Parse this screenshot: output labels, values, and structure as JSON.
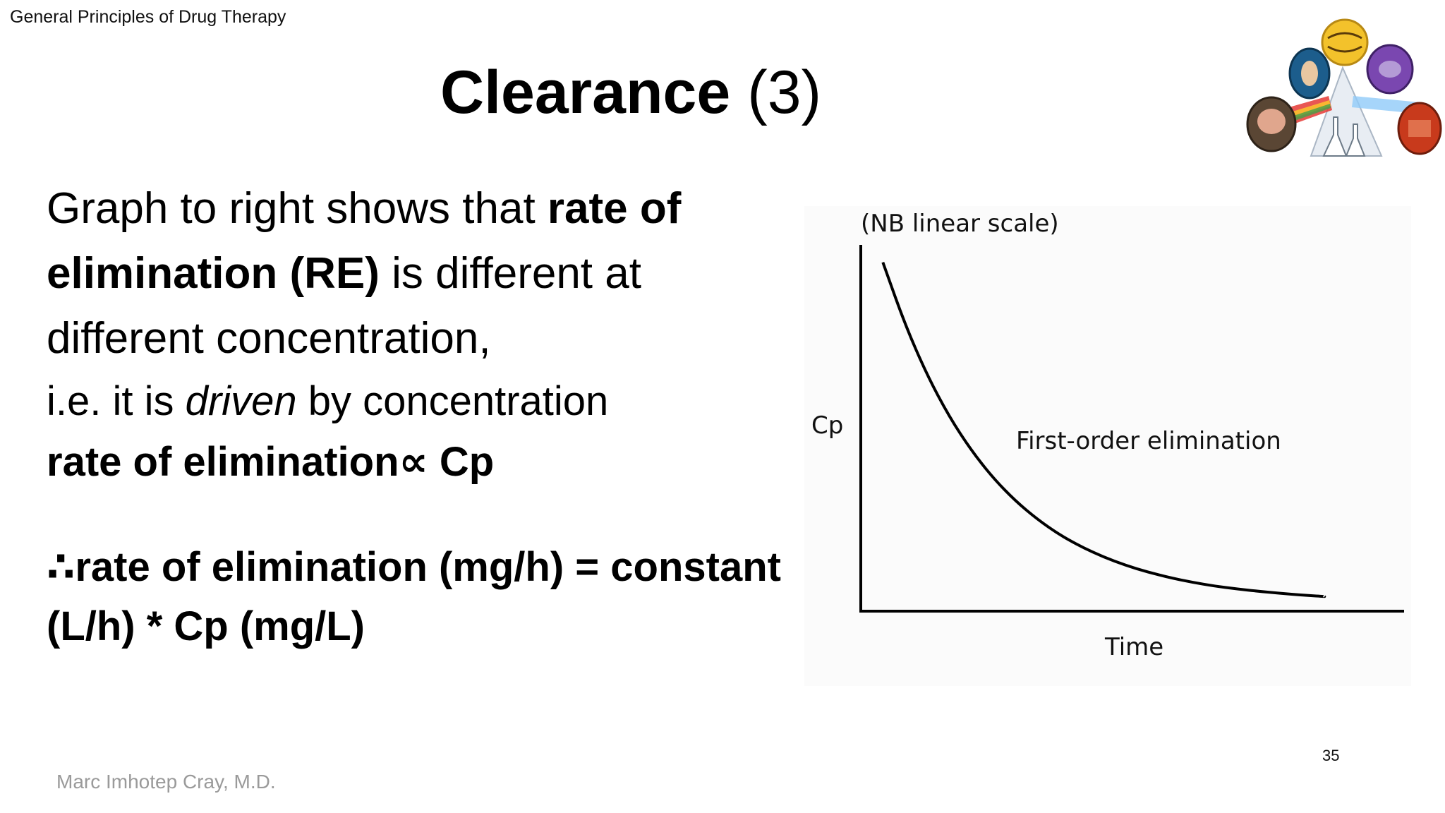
{
  "slide": {
    "header_label": "General Principles of Drug Therapy",
    "title_main": "Clearance",
    "title_number": "(3)",
    "page_number": "35",
    "author": "Marc Imhotep Cray, M.D."
  },
  "body": {
    "line1_normal": "Graph to right shows that ",
    "line1_bold": "rate of",
    "line2_bold": "elimination (RE)",
    "line2_normal": " is different at",
    "line3": "different concentration,",
    "line4_pre": "i.e. it is ",
    "line4_italic": "driven",
    "line4_post": " by concentration",
    "line5": "rate of elimination∝ Cp"
  },
  "formula": {
    "line1": "∴rate of elimination (mg/h) = constant",
    "line2": "(L/h) * Cp (mg/L)"
  },
  "chart_data": {
    "type": "line",
    "title": "(NB linear scale)",
    "xlabel": "Time",
    "ylabel": "Cp",
    "annotation": "First-order elimination",
    "series": [
      {
        "name": "",
        "x": [
          0,
          0.5,
          1,
          1.5,
          2,
          2.5,
          3,
          3.5,
          4,
          4.5,
          5,
          5.5,
          6,
          6.5,
          7,
          7.5,
          8,
          8.5,
          9,
          9.5,
          10
        ],
        "values": [
          1.0,
          0.822,
          0.677,
          0.558,
          0.461,
          0.381,
          0.316,
          0.263,
          0.219,
          0.184,
          0.155,
          0.131,
          0.112,
          0.096,
          0.083,
          0.072,
          0.064,
          0.057,
          0.051,
          0.046,
          0.042
        ]
      }
    ],
    "xlim": [
      -0.5,
      11.8
    ],
    "ylim": [
      0,
      1.05
    ],
    "grid": false,
    "line_color": "#000000"
  },
  "logo": {
    "icon_name": "pharmacology-prism-logo",
    "colors": [
      "#f3c22b",
      "#1c5d8c",
      "#7a47b0",
      "#c83a1c",
      "#d46a2b",
      "#8a8a8a"
    ]
  }
}
